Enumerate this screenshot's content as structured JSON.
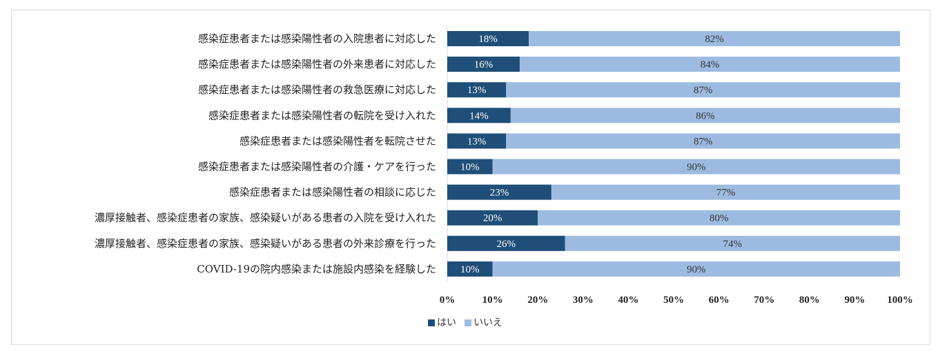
{
  "chart_data": {
    "type": "bar",
    "orientation": "horizontal",
    "stacked": true,
    "categories": [
      "感染症患者または感染陽性者の入院患者に対応した",
      "感染症患者または感染陽性者の外来患者に対応した",
      "感染症患者または感染陽性者の救急医療に対応した",
      "感染症患者または感染陽性者の転院を受け入れた",
      "感染症患者または感染陽性者を転院させた",
      "感染症患者または感染陽性者の介護・ケアを行った",
      "感染症患者または感染陽性者の相談に応じた",
      "濃厚接触者、感染症患者の家族、感染疑いがある患者の入院を受け入れた",
      "濃厚接触者、感染症患者の家族、感染疑いがある患者の外来診療を行った",
      "COVID-19の院内感染または施設内感染を経験した"
    ],
    "series": [
      {
        "name": "はい",
        "color": "#1f4e79",
        "values": [
          18,
          16,
          13,
          14,
          13,
          10,
          23,
          20,
          26,
          10
        ],
        "labels": [
          "18%",
          "16%",
          "13%",
          "14%",
          "13%",
          "10%",
          "23%",
          "20%",
          "26%",
          "10%"
        ]
      },
      {
        "name": "いいえ",
        "color": "#9dbbe0",
        "values": [
          82,
          84,
          87,
          86,
          87,
          90,
          77,
          80,
          74,
          90
        ],
        "labels": [
          "82%",
          "84%",
          "87%",
          "86%",
          "87%",
          "90%",
          "77%",
          "80%",
          "74%",
          "90%"
        ]
      }
    ],
    "xlim": [
      0,
      100
    ],
    "xticks": [
      0,
      10,
      20,
      30,
      40,
      50,
      60,
      70,
      80,
      90,
      100
    ],
    "xtick_labels": [
      "0%",
      "10%",
      "20%",
      "30%",
      "40%",
      "50%",
      "60%",
      "70%",
      "80%",
      "90%",
      "100%"
    ],
    "legend_position": "bottom-left",
    "grid": false
  }
}
